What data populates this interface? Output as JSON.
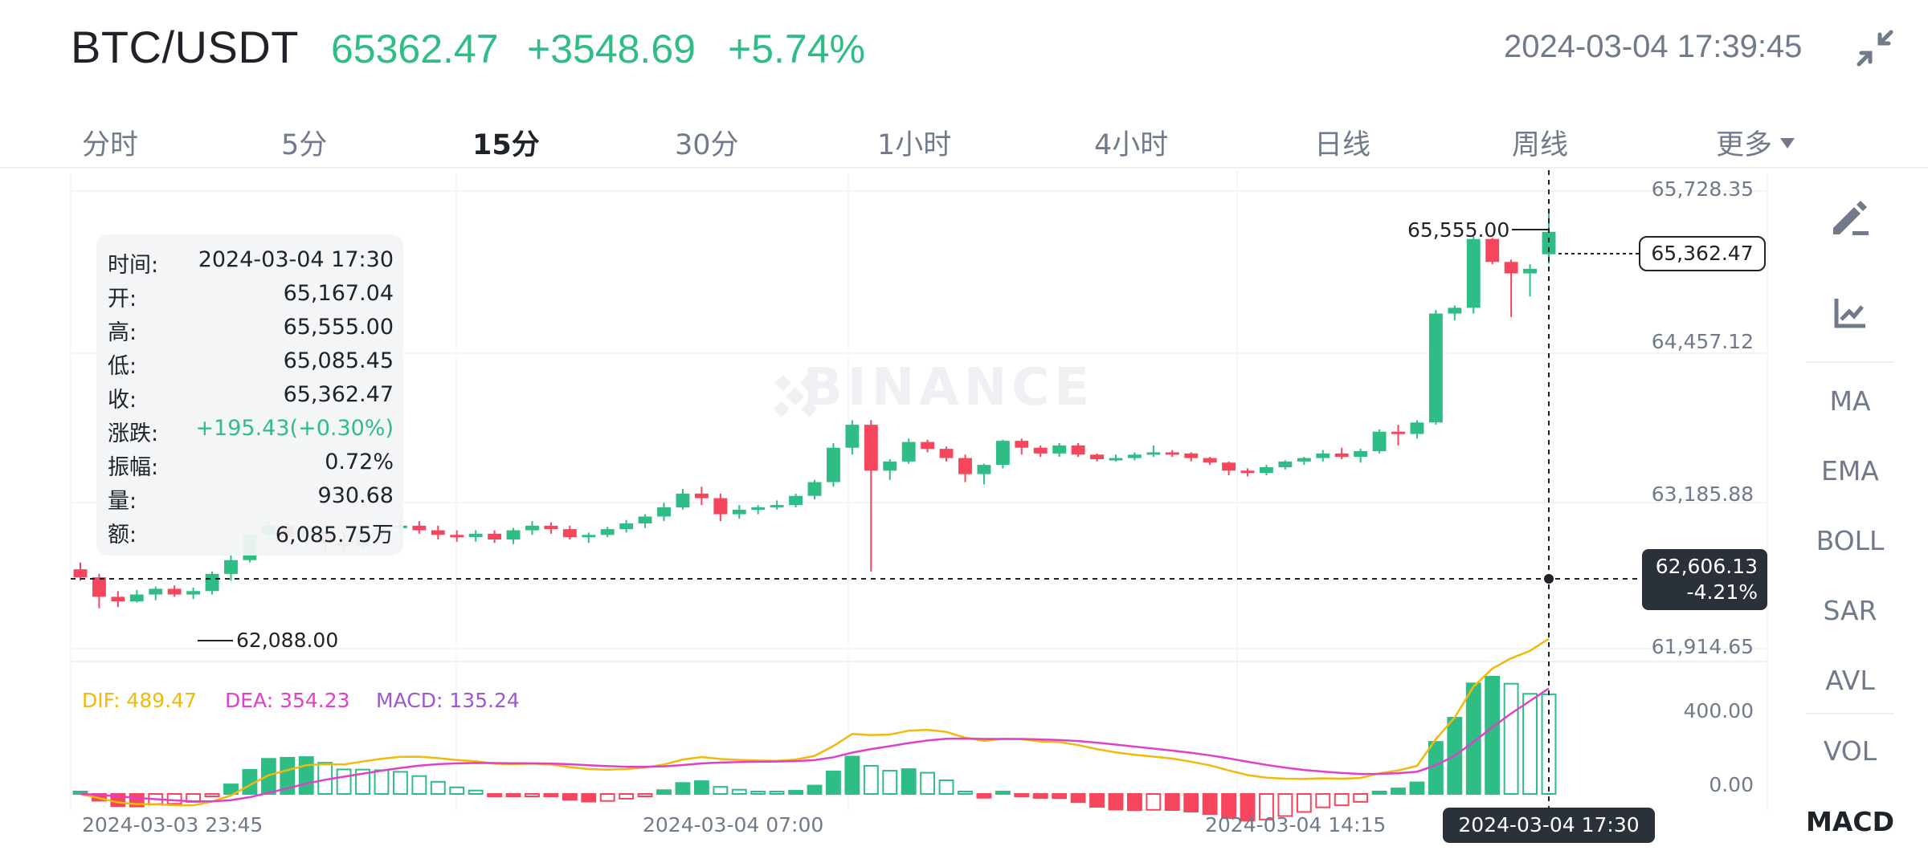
{
  "header": {
    "pair": "BTC/USDT",
    "last_price": "65362.47",
    "change": "+3548.69",
    "change_pct": "+5.74%",
    "timestamp": "2024-03-04 17:39:45",
    "collapse_icon": "collapse-arrows-icon"
  },
  "tabs": [
    {
      "label": "分时"
    },
    {
      "label": "5分"
    },
    {
      "label": "15分",
      "active": true
    },
    {
      "label": "30分"
    },
    {
      "label": "1小时"
    },
    {
      "label": "4小时"
    },
    {
      "label": "日线"
    },
    {
      "label": "周线"
    },
    {
      "label": "更多"
    }
  ],
  "watermark": "BINANCE",
  "price_axis": [
    "65,728.35",
    "64,457.12",
    "63,185.88",
    "61,914.65"
  ],
  "macd_axis": [
    "400.00",
    "0.00"
  ],
  "time_axis": [
    "2024-03-03 23:45",
    "2024-03-04 07:00",
    "2024-03-04 14:15"
  ],
  "tooltip": {
    "rows": [
      {
        "k": "时间:",
        "v": "2024-03-04 17:30"
      },
      {
        "k": "开:",
        "v": "65,167.04"
      },
      {
        "k": "高:",
        "v": "65,555.00"
      },
      {
        "k": "低:",
        "v": "65,085.45"
      },
      {
        "k": "收:",
        "v": "65,362.47"
      },
      {
        "k": "涨跌:",
        "v": "+195.43(+0.30%)",
        "up": true
      },
      {
        "k": "振幅:",
        "v": "0.72%"
      },
      {
        "k": "量:",
        "v": "930.68"
      },
      {
        "k": "额:",
        "v": "6,085.75万"
      }
    ]
  },
  "annotations": {
    "high": "65,555.00",
    "low": "62,088.00",
    "last_tag": "65,362.47",
    "cross_price": "62,606.13",
    "cross_pct": "-4.21%",
    "cross_time": "2024-03-04 17:30"
  },
  "macd_legend": {
    "dif": "DIF: 489.47",
    "dea": "DEA: 354.23",
    "macd": "MACD: 135.24"
  },
  "side_panel": {
    "tools": [
      "draw-pen-icon",
      "indicator-chart-icon"
    ],
    "main_indicators": [
      "MA",
      "EMA",
      "BOLL",
      "SAR",
      "AVL"
    ],
    "sub_indicators": [
      {
        "label": "VOL"
      },
      {
        "label": "MACD",
        "active": true
      }
    ]
  },
  "colors": {
    "up": "#2ebd85",
    "down": "#f6465d",
    "dif": "#f0b90b",
    "dea": "#e040c8",
    "macd": "#9b59d0",
    "text": "#1e2329",
    "muted": "#707a8a"
  },
  "chart_data": {
    "type": "candlestick",
    "interval": "15分",
    "y_range": [
      61700,
      65900
    ],
    "candles_ohlc": [
      [
        62420,
        62480,
        62320,
        62350
      ],
      [
        62350,
        62380,
        62080,
        62180
      ],
      [
        62180,
        62230,
        62090,
        62140
      ],
      [
        62140,
        62240,
        62130,
        62200
      ],
      [
        62200,
        62270,
        62150,
        62250
      ],
      [
        62250,
        62280,
        62180,
        62200
      ],
      [
        62200,
        62260,
        62160,
        62230
      ],
      [
        62230,
        62400,
        62200,
        62380
      ],
      [
        62380,
        62550,
        62320,
        62500
      ],
      [
        62500,
        62750,
        62480,
        62720
      ],
      [
        62720,
        62840,
        62660,
        62800
      ],
      [
        62800,
        62820,
        62650,
        62700
      ],
      [
        62700,
        62780,
        62600,
        62750
      ],
      [
        62750,
        62760,
        62580,
        62650
      ],
      [
        62650,
        62740,
        62560,
        62620
      ],
      [
        62620,
        62780,
        62600,
        62760
      ],
      [
        62760,
        62830,
        62700,
        62790
      ],
      [
        62790,
        62860,
        62730,
        62800
      ],
      [
        62800,
        62840,
        62730,
        62760
      ],
      [
        62760,
        62800,
        62680,
        62720
      ],
      [
        62720,
        62760,
        62660,
        62700
      ],
      [
        62700,
        62760,
        62660,
        62730
      ],
      [
        62730,
        62760,
        62650,
        62680
      ],
      [
        62680,
        62780,
        62640,
        62760
      ],
      [
        62760,
        62840,
        62720,
        62800
      ],
      [
        62800,
        62830,
        62730,
        62770
      ],
      [
        62770,
        62800,
        62680,
        62700
      ],
      [
        62700,
        62740,
        62650,
        62720
      ],
      [
        62720,
        62790,
        62700,
        62770
      ],
      [
        62770,
        62850,
        62740,
        62820
      ],
      [
        62820,
        62900,
        62780,
        62880
      ],
      [
        62880,
        63000,
        62840,
        62960
      ],
      [
        62960,
        63120,
        62940,
        63080
      ],
      [
        63080,
        63140,
        62980,
        63040
      ],
      [
        63040,
        63080,
        62840,
        62900
      ],
      [
        62900,
        62980,
        62860,
        62940
      ],
      [
        62940,
        62980,
        62900,
        62960
      ],
      [
        62960,
        63020,
        62940,
        62980
      ],
      [
        62980,
        63080,
        62960,
        63060
      ],
      [
        63060,
        63200,
        63030,
        63180
      ],
      [
        63180,
        63520,
        63140,
        63480
      ],
      [
        63480,
        63720,
        63420,
        63680
      ],
      [
        63680,
        63720,
        62400,
        63280
      ],
      [
        63280,
        63380,
        63200,
        63360
      ],
      [
        63360,
        63560,
        63340,
        63530
      ],
      [
        63530,
        63550,
        63440,
        63470
      ],
      [
        63470,
        63490,
        63360,
        63390
      ],
      [
        63390,
        63420,
        63180,
        63250
      ],
      [
        63250,
        63340,
        63160,
        63330
      ],
      [
        63330,
        63550,
        63300,
        63540
      ],
      [
        63540,
        63560,
        63420,
        63480
      ],
      [
        63480,
        63500,
        63400,
        63430
      ],
      [
        63430,
        63520,
        63400,
        63500
      ],
      [
        63500,
        63520,
        63400,
        63420
      ],
      [
        63420,
        63430,
        63360,
        63380
      ],
      [
        63380,
        63420,
        63360,
        63390
      ],
      [
        63390,
        63440,
        63370,
        63420
      ],
      [
        63420,
        63500,
        63400,
        63440
      ],
      [
        63440,
        63460,
        63400,
        63430
      ],
      [
        63430,
        63440,
        63360,
        63390
      ],
      [
        63390,
        63400,
        63330,
        63350
      ],
      [
        63350,
        63360,
        63240,
        63280
      ],
      [
        63280,
        63300,
        63230,
        63260
      ],
      [
        63260,
        63330,
        63240,
        63310
      ],
      [
        63310,
        63370,
        63290,
        63360
      ],
      [
        63360,
        63400,
        63330,
        63390
      ],
      [
        63390,
        63460,
        63360,
        63430
      ],
      [
        63430,
        63480,
        63380,
        63400
      ],
      [
        63400,
        63470,
        63350,
        63450
      ],
      [
        63450,
        63640,
        63430,
        63620
      ],
      [
        63620,
        63680,
        63500,
        63600
      ],
      [
        63600,
        63720,
        63560,
        63700
      ],
      [
        63700,
        64680,
        63680,
        64650
      ],
      [
        64650,
        64720,
        64590,
        64700
      ],
      [
        64700,
        65320,
        64650,
        65300
      ],
      [
        65300,
        65310,
        65080,
        65100
      ],
      [
        65100,
        65120,
        64620,
        65000
      ],
      [
        65000,
        65080,
        64800,
        65040
      ],
      [
        65167.04,
        65555,
        65085.45,
        65362.47
      ]
    ]
  }
}
